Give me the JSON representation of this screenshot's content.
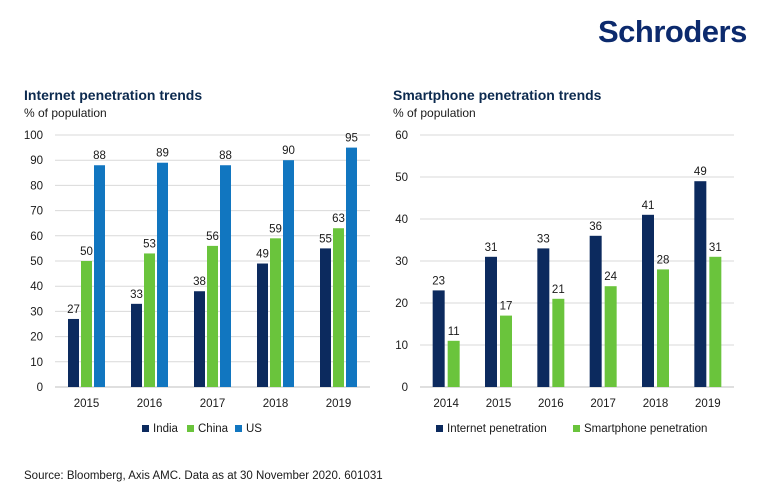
{
  "brand": {
    "logo_text": "Schroders",
    "color": "#0c2a6d"
  },
  "source": "Source: Bloomberg, Axis AMC. Data as at 30 November 2020. 601031",
  "chart_data": [
    {
      "type": "bar",
      "title": "Internet penetration trends",
      "subtitle": "% of population",
      "categories": [
        "2015",
        "2016",
        "2017",
        "2018",
        "2019"
      ],
      "series": [
        {
          "name": "India",
          "values": [
            27,
            33,
            38,
            49,
            55
          ],
          "color": "#0c2a5e"
        },
        {
          "name": "China",
          "values": [
            50,
            53,
            56,
            59,
            63
          ],
          "color": "#6ac43c"
        },
        {
          "name": "US",
          "values": [
            88,
            89,
            88,
            90,
            95
          ],
          "color": "#1176c0"
        }
      ],
      "ylim": [
        0,
        100
      ],
      "yticks": [
        0,
        10,
        20,
        30,
        40,
        50,
        60,
        70,
        80,
        90,
        100
      ],
      "grid": true,
      "legend": "bottom"
    },
    {
      "type": "bar",
      "title": "Smartphone penetration trends",
      "subtitle": "% of population",
      "categories": [
        "2014",
        "2015",
        "2016",
        "2017",
        "2018",
        "2019"
      ],
      "series": [
        {
          "name": "Internet penetration",
          "values": [
            23,
            31,
            33,
            36,
            41,
            49
          ],
          "color": "#0c2a5e"
        },
        {
          "name": "Smartphone penetration",
          "values": [
            11,
            17,
            21,
            24,
            28,
            31
          ],
          "color": "#6ac43c"
        }
      ],
      "ylim": [
        0,
        60
      ],
      "yticks": [
        0,
        10,
        20,
        30,
        40,
        50,
        60
      ],
      "grid": true,
      "legend": "bottom"
    }
  ]
}
